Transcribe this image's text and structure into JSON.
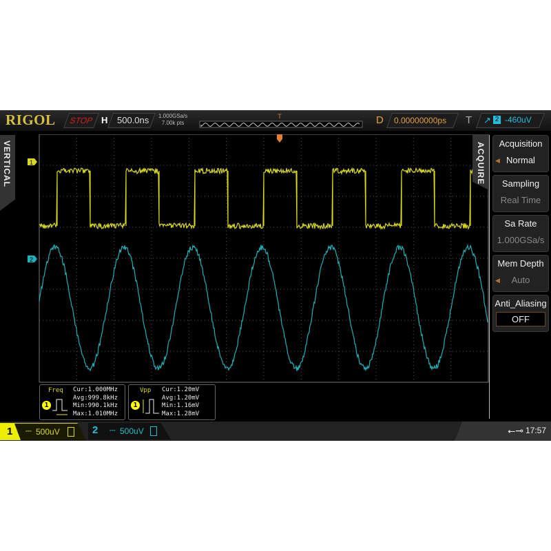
{
  "header": {
    "brand": "RIGOL",
    "run_state": "STOP",
    "h_label": "H",
    "timebase": "500.0ns",
    "sample_rate": "1.000GSa/s",
    "mem_points": "7.00k pts",
    "trigger_pos_marker": "T",
    "d_label": "D",
    "delay": "0.00000000ps",
    "t_label": "T",
    "trigger_edge_icon": "rising-edge-icon",
    "trigger_source": "2",
    "trigger_level": "-460uV"
  },
  "left_tab": {
    "label": "VERTICAL"
  },
  "markers": {
    "ch1": "1",
    "ch2": "2"
  },
  "colors": {
    "ch1": "#d8d820",
    "ch2": "#20b0b8",
    "stop": "#d02020",
    "brand": "#d8c040"
  },
  "menu": {
    "title": "ACQUIRE",
    "items": [
      {
        "label": "Acquisition",
        "value": "Normal",
        "has_arrow": true
      },
      {
        "label": "Sampling",
        "value": "Real Time",
        "has_arrow": false
      },
      {
        "label": "Sa Rate",
        "value": "1.000GSa/s",
        "has_arrow": false
      },
      {
        "label": "Mem Depth",
        "value": "Auto",
        "has_arrow": true
      },
      {
        "label": "Anti_Aliasing",
        "value": "OFF",
        "has_arrow": false
      }
    ]
  },
  "measurements": [
    {
      "name": "Freq",
      "source": "1",
      "cur": "Cur:1.000MHz",
      "avg": "Avg:999.8kHz",
      "min": "Min:990.1kHz",
      "max": "Max:1.010MHz"
    },
    {
      "name": "Vpp",
      "source": "1",
      "cur": "Cur:1.20mV",
      "avg": "Avg:1.20mV",
      "min": "Min:1.16mV",
      "max": "Max:1.28mV"
    }
  ],
  "channels": [
    {
      "num": "1",
      "coupling": "⎓",
      "scale": "500uV"
    },
    {
      "num": "2",
      "coupling": "⎓",
      "scale": "500uV"
    }
  ],
  "status": {
    "usb_icon": "usb-icon",
    "time": "17:57"
  },
  "waveforms": {
    "ch1": {
      "type": "square",
      "frequency": "1.000MHz"
    },
    "ch2": {
      "type": "sine"
    }
  }
}
